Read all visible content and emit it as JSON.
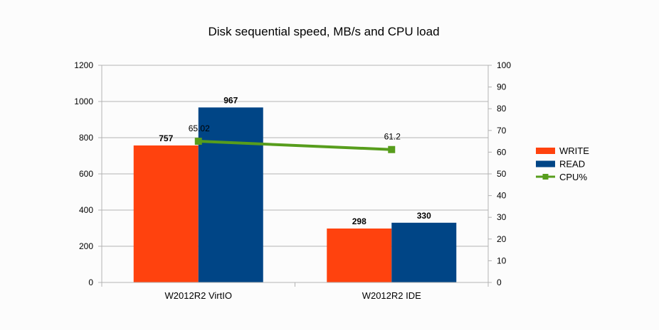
{
  "chart_data": {
    "type": "bar",
    "title": "Disk sequential speed, MB/s and CPU load",
    "categories": [
      "W2012R2 VirtIO",
      "W2012R2 IDE"
    ],
    "series": [
      {
        "name": "WRITE",
        "type": "bar",
        "axis": "left",
        "color": "#ff420e",
        "values": [
          757,
          298
        ],
        "labels": [
          "757",
          "298"
        ]
      },
      {
        "name": "READ",
        "type": "bar",
        "axis": "left",
        "color": "#004586",
        "values": [
          967,
          330
        ],
        "labels": [
          "967",
          "330"
        ]
      },
      {
        "name": "CPU%",
        "type": "line",
        "axis": "right",
        "color": "#579d1c",
        "values": [
          65.02,
          61.2
        ],
        "labels": [
          "65.02",
          "61.2"
        ]
      }
    ],
    "ylim": [
      0,
      1200
    ],
    "yticks": [
      "0",
      "200",
      "400",
      "600",
      "800",
      "1000",
      "1200"
    ],
    "y2lim": [
      0,
      100
    ],
    "y2ticks": [
      "0",
      "10",
      "20",
      "30",
      "40",
      "50",
      "60",
      "70",
      "80",
      "90",
      "100"
    ],
    "grid": true,
    "legend": "right"
  }
}
